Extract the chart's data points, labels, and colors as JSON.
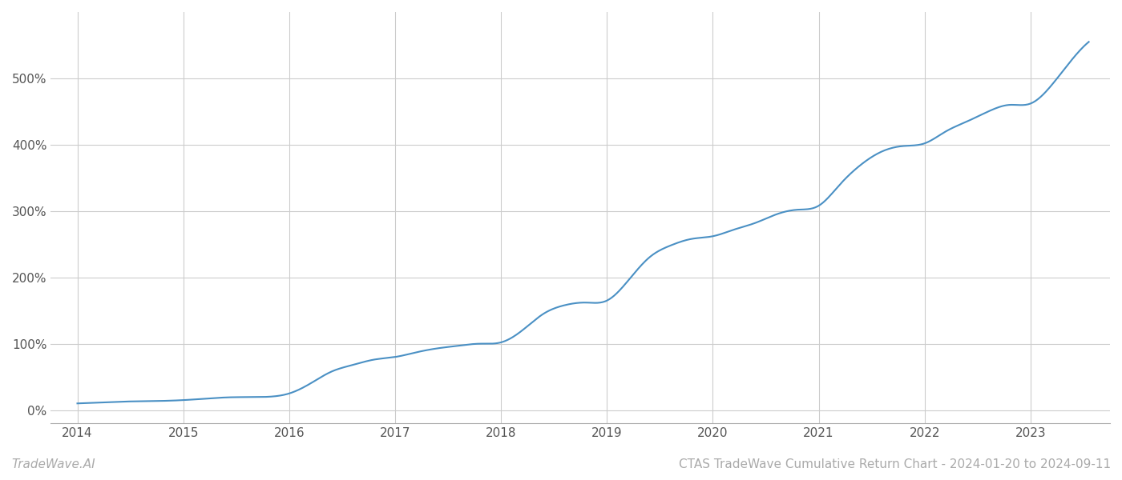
{
  "title": "CTAS TradeWave Cumulative Return Chart - 2024-01-20 to 2024-09-11",
  "watermark": "TradeWave.AI",
  "line_color": "#4a90c4",
  "background_color": "#ffffff",
  "grid_color": "#cccccc",
  "x_years": [
    2014,
    2015,
    2016,
    2017,
    2018,
    2019,
    2020,
    2021,
    2022,
    2023
  ],
  "x_data": [
    2014.0,
    2014.15,
    2014.3,
    2014.5,
    2014.7,
    2014.85,
    2015.0,
    2015.2,
    2015.4,
    2015.6,
    2015.8,
    2016.0,
    2016.2,
    2016.4,
    2016.6,
    2016.8,
    2017.0,
    2017.2,
    2017.4,
    2017.6,
    2017.8,
    2018.0,
    2018.2,
    2018.4,
    2018.6,
    2018.8,
    2019.0,
    2019.2,
    2019.4,
    2019.6,
    2019.8,
    2020.0,
    2020.2,
    2020.4,
    2020.6,
    2020.8,
    2021.0,
    2021.2,
    2021.4,
    2021.6,
    2021.8,
    2022.0,
    2022.2,
    2022.4,
    2022.6,
    2022.8,
    2023.0,
    2023.2,
    2023.4,
    2023.55
  ],
  "y_data": [
    10,
    11,
    12,
    13,
    13.5,
    14,
    15,
    17,
    19,
    19.5,
    20,
    25,
    40,
    58,
    68,
    76,
    80,
    87,
    93,
    97,
    100,
    102,
    120,
    145,
    158,
    162,
    165,
    195,
    230,
    248,
    258,
    262,
    272,
    282,
    295,
    302,
    308,
    340,
    370,
    390,
    398,
    402,
    420,
    435,
    450,
    460,
    462,
    490,
    530,
    555
  ],
  "ylim": [
    -20,
    600
  ],
  "yticks": [
    0,
    100,
    200,
    300,
    400,
    500
  ],
  "xlim": [
    2013.75,
    2023.75
  ],
  "line_width": 1.5,
  "title_fontsize": 11,
  "watermark_fontsize": 11,
  "tick_fontsize": 11,
  "tick_color": "#555555",
  "bottom_text_color": "#aaaaaa",
  "spine_color": "#aaaaaa"
}
